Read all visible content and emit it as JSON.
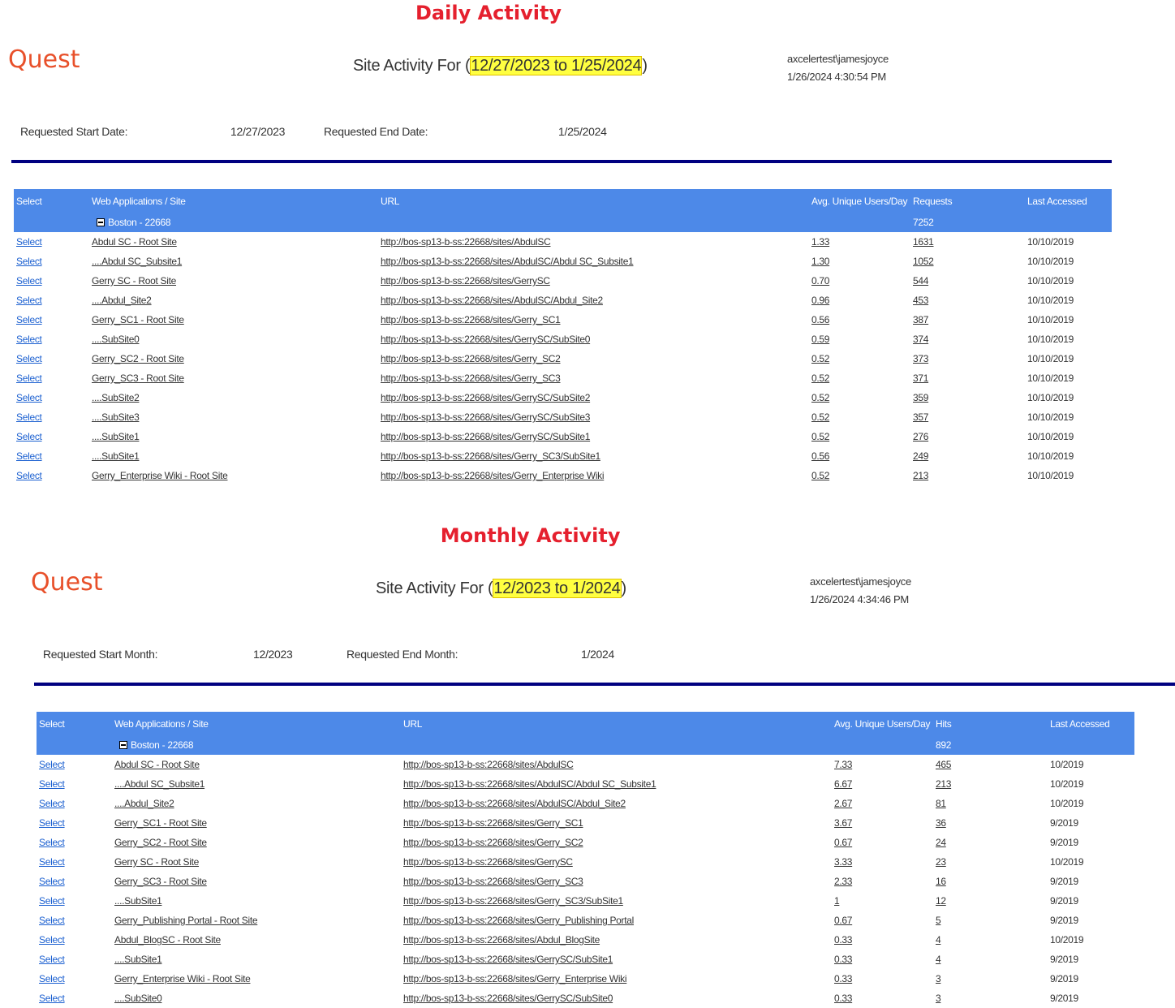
{
  "daily": {
    "section_title": "Daily Activity",
    "logo": "Quest",
    "title_prefix": "Site Activity For (",
    "title_range": "12/27/2023 to 1/25/2024",
    "title_suffix": ")",
    "user": "axcelertest\\jamesjoyce",
    "timestamp": "1/26/2024 4:30:54 PM",
    "start_label": "Requested Start Date:",
    "start_value": "12/27/2023",
    "end_label": "Requested End Date:",
    "end_value": "1/25/2024",
    "columns": [
      "Select",
      "Web Applications / Site",
      "URL",
      "Avg. Unique Users/Day",
      "Requests",
      "Last Accessed"
    ],
    "group": {
      "label": "Boston - 22668",
      "total": "7252"
    },
    "rows": [
      {
        "select": "Select",
        "site": "Abdul SC - Root Site",
        "url": "http://bos-sp13-b-ss:22668/sites/AbdulSC",
        "avg": "1.33",
        "count": "1631",
        "last": "10/10/2019"
      },
      {
        "select": "Select",
        "site": "....Abdul SC_Subsite1",
        "url": "http://bos-sp13-b-ss:22668/sites/AbdulSC/Abdul SC_Subsite1",
        "avg": "1.30",
        "count": "1052",
        "last": "10/10/2019"
      },
      {
        "select": "Select",
        "site": "Gerry SC - Root Site",
        "url": "http://bos-sp13-b-ss:22668/sites/GerrySC",
        "avg": "0.70",
        "count": "544",
        "last": "10/10/2019"
      },
      {
        "select": "Select",
        "site": "....Abdul_Site2",
        "url": "http://bos-sp13-b-ss:22668/sites/AbdulSC/Abdul_Site2",
        "avg": "0.96",
        "count": "453",
        "last": "10/10/2019"
      },
      {
        "select": "Select",
        "site": "Gerry_SC1 - Root Site",
        "url": "http://bos-sp13-b-ss:22668/sites/Gerry_SC1",
        "avg": "0.56",
        "count": "387",
        "last": "10/10/2019"
      },
      {
        "select": "Select",
        "site": "....SubSite0",
        "url": "http://bos-sp13-b-ss:22668/sites/GerrySC/SubSite0",
        "avg": "0.59",
        "count": "374",
        "last": "10/10/2019"
      },
      {
        "select": "Select",
        "site": "Gerry_SC2 - Root Site",
        "url": "http://bos-sp13-b-ss:22668/sites/Gerry_SC2",
        "avg": "0.52",
        "count": "373",
        "last": "10/10/2019"
      },
      {
        "select": "Select",
        "site": "Gerry_SC3 - Root Site",
        "url": "http://bos-sp13-b-ss:22668/sites/Gerry_SC3",
        "avg": "0.52",
        "count": "371",
        "last": "10/10/2019"
      },
      {
        "select": "Select",
        "site": "....SubSite2",
        "url": "http://bos-sp13-b-ss:22668/sites/GerrySC/SubSite2",
        "avg": "0.52",
        "count": "359",
        "last": "10/10/2019"
      },
      {
        "select": "Select",
        "site": "....SubSite3",
        "url": "http://bos-sp13-b-ss:22668/sites/GerrySC/SubSite3",
        "avg": "0.52",
        "count": "357",
        "last": "10/10/2019"
      },
      {
        "select": "Select",
        "site": "....SubSite1",
        "url": "http://bos-sp13-b-ss:22668/sites/GerrySC/SubSite1",
        "avg": "0.52",
        "count": "276",
        "last": "10/10/2019"
      },
      {
        "select": "Select",
        "site": "....SubSite1",
        "url": "http://bos-sp13-b-ss:22668/sites/Gerry_SC3/SubSite1",
        "avg": "0.56",
        "count": "249",
        "last": "10/10/2019"
      },
      {
        "select": "Select",
        "site": "Gerry_Enterprise Wiki - Root Site",
        "url": "http://bos-sp13-b-ss:22668/sites/Gerry_Enterprise Wiki",
        "avg": "0.52",
        "count": "213",
        "last": "10/10/2019"
      }
    ]
  },
  "monthly": {
    "section_title": "Monthly Activity",
    "logo": "Quest",
    "title_prefix": "Site Activity For (",
    "title_range": "12/2023 to 1/2024",
    "title_suffix": ")",
    "user": "axcelertest\\jamesjoyce",
    "timestamp": "1/26/2024 4:34:46 PM",
    "start_label": "Requested Start Month:",
    "start_value": "12/2023",
    "end_label": "Requested End Month:",
    "end_value": "1/2024",
    "columns": [
      "Select",
      "Web Applications / Site",
      "URL",
      "Avg. Unique Users/Day",
      "Hits",
      "Last Accessed"
    ],
    "group": {
      "label": "Boston - 22668",
      "total": "892"
    },
    "rows": [
      {
        "select": "Select",
        "site": "Abdul SC - Root Site",
        "url": "http://bos-sp13-b-ss:22668/sites/AbdulSC",
        "avg": "7.33",
        "count": "465",
        "last": "10/2019"
      },
      {
        "select": "Select",
        "site": "....Abdul SC_Subsite1",
        "url": "http://bos-sp13-b-ss:22668/sites/AbdulSC/Abdul SC_Subsite1",
        "avg": "6.67",
        "count": "213",
        "last": "10/2019"
      },
      {
        "select": "Select",
        "site": "....Abdul_Site2",
        "url": "http://bos-sp13-b-ss:22668/sites/AbdulSC/Abdul_Site2",
        "avg": "2.67",
        "count": "81",
        "last": "10/2019"
      },
      {
        "select": "Select",
        "site": "Gerry_SC1 - Root Site",
        "url": "http://bos-sp13-b-ss:22668/sites/Gerry_SC1",
        "avg": "3.67",
        "count": "36",
        "last": "9/2019"
      },
      {
        "select": "Select",
        "site": "Gerry_SC2 - Root Site",
        "url": "http://bos-sp13-b-ss:22668/sites/Gerry_SC2",
        "avg": "0.67",
        "count": "24",
        "last": "9/2019"
      },
      {
        "select": "Select",
        "site": "Gerry SC - Root Site",
        "url": "http://bos-sp13-b-ss:22668/sites/GerrySC",
        "avg": "3.33",
        "count": "23",
        "last": "10/2019"
      },
      {
        "select": "Select",
        "site": "Gerry_SC3 - Root Site",
        "url": "http://bos-sp13-b-ss:22668/sites/Gerry_SC3",
        "avg": "2.33",
        "count": "16",
        "last": "9/2019"
      },
      {
        "select": "Select",
        "site": "....SubSite1",
        "url": "http://bos-sp13-b-ss:22668/sites/Gerry_SC3/SubSite1",
        "avg": "1",
        "count": "12",
        "last": "9/2019"
      },
      {
        "select": "Select",
        "site": "Gerry_Publishing Portal - Root Site",
        "url": "http://bos-sp13-b-ss:22668/sites/Gerry_Publishing Portal",
        "avg": "0.67",
        "count": "5",
        "last": "9/2019"
      },
      {
        "select": "Select",
        "site": "Abdul_BlogSC - Root Site",
        "url": "http://bos-sp13-b-ss:22668/sites/Abdul_BlogSite",
        "avg": "0.33",
        "count": "4",
        "last": "10/2019"
      },
      {
        "select": "Select",
        "site": "....SubSite1",
        "url": "http://bos-sp13-b-ss:22668/sites/GerrySC/SubSite1",
        "avg": "0.33",
        "count": "4",
        "last": "9/2019"
      },
      {
        "select": "Select",
        "site": "Gerry_Enterprise Wiki - Root Site",
        "url": "http://bos-sp13-b-ss:22668/sites/Gerry_Enterprise Wiki",
        "avg": "0.33",
        "count": "3",
        "last": "9/2019"
      },
      {
        "select": "Select",
        "site": "....SubSite0",
        "url": "http://bos-sp13-b-ss:22668/sites/GerrySC/SubSite0",
        "avg": "0.33",
        "count": "3",
        "last": "9/2019"
      }
    ]
  },
  "colors": {
    "header": "#4d89e8",
    "rule": "#000080",
    "title": "#e5202e",
    "logo": "#e8502a",
    "highlight": "#ffff40",
    "link": "#1a5fd0"
  }
}
